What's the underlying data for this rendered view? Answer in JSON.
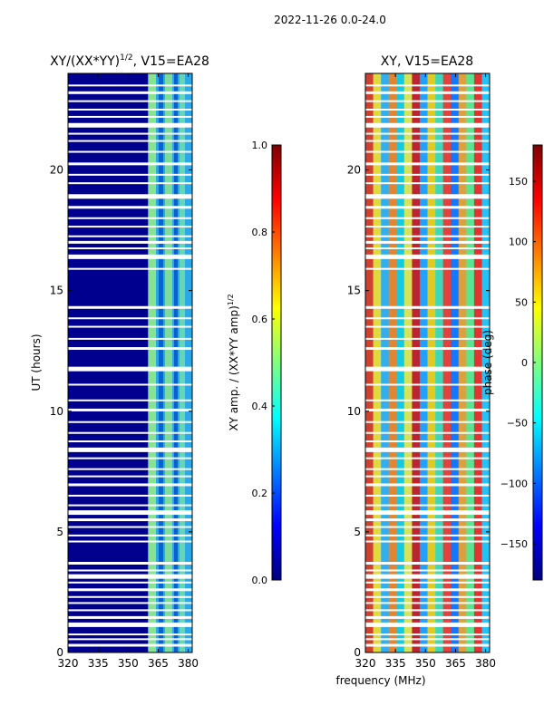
{
  "figure": {
    "suptitle": "2022-11-26 0.0-24.0"
  },
  "chart_data": [
    {
      "type": "heatmap",
      "title_text": "XY/(XX*YY)",
      "title_sup": "1/2",
      "title_suffix": ", V15=EA28",
      "xlabel": "",
      "ylabel": "UT (hours)",
      "xlim": [
        320,
        382
      ],
      "ylim": [
        0,
        24
      ],
      "xticks": [
        320,
        335,
        350,
        365,
        380
      ],
      "yticks": [
        0,
        5,
        10,
        15,
        20
      ],
      "colorbar": {
        "label_text": "XY amp. / (XX*YY amp)",
        "label_sup": "1/2",
        "range": [
          0.0,
          1.0
        ],
        "ticks": [
          "0.0",
          "0.2",
          "0.4",
          "0.6",
          "0.8",
          "1.0"
        ],
        "colormap": "jet"
      },
      "description": "amplitude mostly low (~0.05) below 360 MHz, elevated (~0.3-0.6) between 360-382 MHz; white gaps are flagged times"
    },
    {
      "type": "heatmap",
      "title_text": "XY, V15=EA28",
      "xlabel": "frequency (MHz)",
      "ylabel": "",
      "xlim": [
        320,
        382
      ],
      "ylim": [
        0,
        24
      ],
      "xticks": [
        320,
        335,
        350,
        365,
        380
      ],
      "yticks": [
        0,
        5,
        10,
        15,
        20
      ],
      "colorbar": {
        "label_text": "phase (deg)",
        "range": [
          -180,
          180
        ],
        "ticks": [
          "150",
          "100",
          "50",
          "0",
          "−50",
          "−100",
          "−150"
        ],
        "colormap": "jet"
      },
      "description": "phase varies across full -180..180 range with vertical banding"
    }
  ],
  "flagged_hours": [
    0.3,
    0.55,
    0.75,
    1.15,
    1.45,
    1.75,
    2.05,
    2.3,
    2.6,
    2.9,
    3.15,
    3.4,
    3.7,
    4.6,
    4.85,
    5.2,
    5.5,
    5.8,
    6.1,
    6.5,
    6.95,
    7.3,
    7.6,
    8.05,
    8.4,
    8.75,
    9.1,
    9.55,
    10.05,
    10.45,
    11.1,
    11.75,
    12.6,
    13.0,
    13.5,
    13.85,
    14.3,
    15.9,
    16.4,
    16.75,
    17.0,
    17.25,
    17.65,
    18.0,
    18.45,
    18.9,
    19.45,
    19.8,
    20.25,
    20.75,
    21.2,
    21.5,
    21.85,
    22.2,
    22.5,
    22.85,
    23.2,
    23.5
  ]
}
